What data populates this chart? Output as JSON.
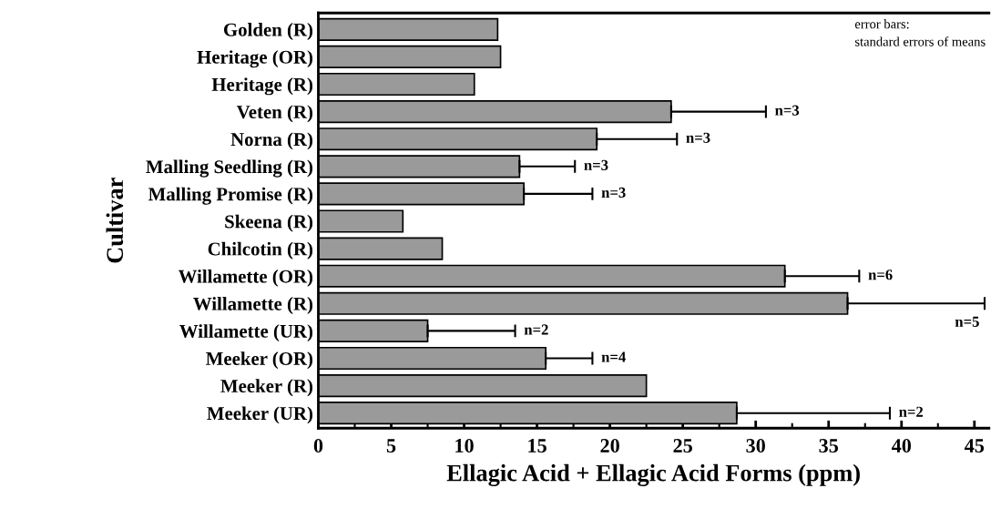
{
  "chart_data": {
    "type": "bar",
    "orientation": "horizontal",
    "xlabel": "Ellagic Acid + Ellagic Acid Forms (ppm)",
    "ylabel": "Cultivar",
    "categories": [
      "Golden (R)",
      "Heritage (OR)",
      "Heritage (R)",
      "Veten (R)",
      "Norna (R)",
      "Malling Seedling (R)",
      "Malling Promise (R)",
      "Skeena (R)",
      "Chilcotin (R)",
      "Willamette (OR)",
      "Willamette (R)",
      "Willamette (UR)",
      "Meeker (OR)",
      "Meeker (R)",
      "Meeker (UR)"
    ],
    "values": [
      12.3,
      12.5,
      10.7,
      24.2,
      19.1,
      13.8,
      14.1,
      5.8,
      8.5,
      32.0,
      36.3,
      7.5,
      15.6,
      22.5,
      28.7
    ],
    "errors": [
      null,
      null,
      null,
      [
        24.2,
        30.7
      ],
      [
        19.1,
        24.6
      ],
      [
        13.8,
        17.6
      ],
      [
        14.1,
        18.8
      ],
      null,
      null,
      [
        32.0,
        37.1
      ],
      [
        36.3,
        45.7
      ],
      [
        7.5,
        13.5
      ],
      [
        15.6,
        18.8
      ],
      null,
      [
        28.7,
        39.2
      ]
    ],
    "color": "#9a9a9a",
    "xlim": [
      0,
      46
    ],
    "xticks": [
      0,
      5,
      10,
      15,
      20,
      25,
      30,
      35,
      40,
      45
    ],
    "grid": false,
    "legend": false,
    "annotations": [
      "error bars:\nstandard errors of means",
      {
        "text": "n=3",
        "x": 30.7,
        "y": "Veten (R)"
      },
      {
        "text": "n=3",
        "x": 24.6,
        "y": "Norna (R)"
      },
      {
        "text": "n=3",
        "x": 17.6,
        "y": "Malling Seedling (R)"
      },
      {
        "text": "n=3",
        "x": 18.8,
        "y": "Malling Promise (R)"
      },
      {
        "text": "n=6",
        "x": 37.1,
        "y": "Willamette (OR)"
      },
      {
        "text": "n=5",
        "x": 45.7,
        "y": "Willamette (R)"
      },
      {
        "text": "n=2",
        "x": 13.5,
        "y": "Willamette (UR)"
      },
      {
        "text": "n=4",
        "x": 18.8,
        "y": "Meeker (OR)"
      },
      {
        "text": "n=2",
        "x": 39.2,
        "y": "Meeker (UR)"
      }
    ]
  }
}
